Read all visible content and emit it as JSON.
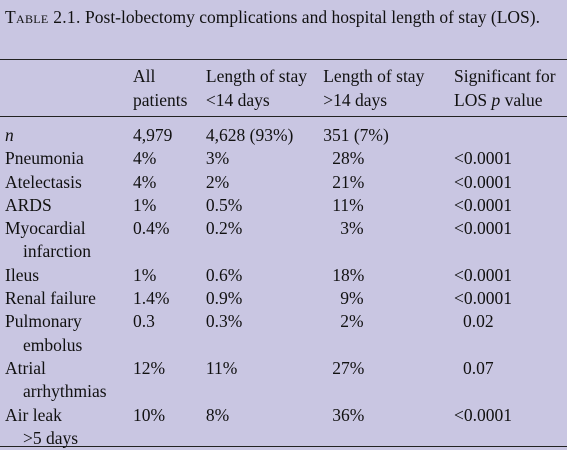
{
  "caption": {
    "label": "Table 2.1.",
    "text": " Post-lobectomy complications and hospital length of stay (LOS)."
  },
  "columns": [
    {
      "line1": "",
      "line2": ""
    },
    {
      "line1": "All",
      "line2": "patients"
    },
    {
      "line1": "Length of stay",
      "line2": "<14 days"
    },
    {
      "line1": "Length of stay",
      "line2": ">14 days"
    },
    {
      "line1": "Significant for",
      "line2": "LOS p value"
    }
  ],
  "rows": [
    {
      "label1": "n",
      "label2": "",
      "all": "4,979",
      "lt14": "4,628 (93%)",
      "gt14": "351 (7%)",
      "p": ""
    },
    {
      "label1": "Pneumonia",
      "label2": "",
      "all": "4%",
      "lt14": "3%",
      "gt14": "28%",
      "p": "<0.0001"
    },
    {
      "label1": "Atelectasis",
      "label2": "",
      "all": "4%",
      "lt14": "2%",
      "gt14": "21%",
      "p": "<0.0001"
    },
    {
      "label1": "ARDS",
      "label2": "",
      "all": "1%",
      "lt14": "0.5%",
      "gt14": "11%",
      "p": "<0.0001"
    },
    {
      "label1": "Myocardial",
      "label2": "infarction",
      "all": "0.4%",
      "lt14": "0.2%",
      "gt14": "3%",
      "p": "<0.0001"
    },
    {
      "label1": "Ileus",
      "label2": "",
      "all": "1%",
      "lt14": "0.6%",
      "gt14": "18%",
      "p": "<0.0001"
    },
    {
      "label1": "Renal failure",
      "label2": "",
      "all": "1.4%",
      "lt14": "0.9%",
      "gt14": "9%",
      "p": "<0.0001"
    },
    {
      "label1": "Pulmonary",
      "label2": "embolus",
      "all": "0.3",
      "lt14": "0.3%",
      "gt14": "2%",
      "p": "0.02"
    },
    {
      "label1": "Atrial",
      "label2": "arrhythmias",
      "all": "12%",
      "lt14": "11%",
      "gt14": "27%",
      "p": "0.07"
    },
    {
      "label1": "Air leak",
      "label2": ">5 days",
      "all": "10%",
      "lt14": "8%",
      "gt14": "36%",
      "p": "<0.0001"
    }
  ]
}
